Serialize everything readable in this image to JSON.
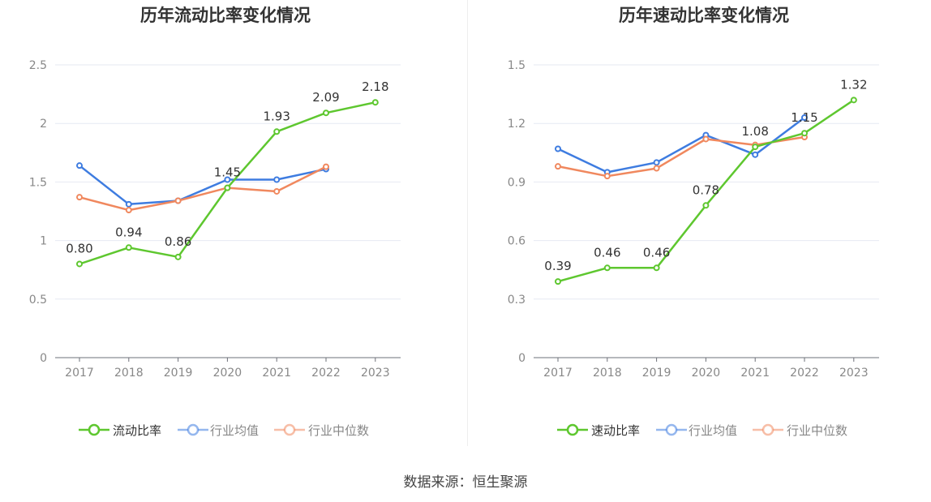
{
  "source_text": "数据来源：恒生聚源",
  "chart_data": [
    {
      "type": "line",
      "title": "历年流动比率变化情况",
      "categories": [
        "2017",
        "2018",
        "2019",
        "2020",
        "2021",
        "2022",
        "2023"
      ],
      "ylim": [
        0,
        2.5
      ],
      "yticks": [
        0,
        0.5,
        1,
        1.5,
        2,
        2.5
      ],
      "ytick_labels": [
        "0",
        "0.5",
        "1",
        "1.5",
        "2",
        "2.5"
      ],
      "grid": true,
      "legend": "bottom",
      "series": [
        {
          "name": "流动比率",
          "color": "#5ec72f",
          "values": [
            0.8,
            0.94,
            0.86,
            1.45,
            1.93,
            2.09,
            2.18
          ],
          "labels": [
            "0.80",
            "0.94",
            "0.86",
            "1.45",
            "1.93",
            "2.09",
            "2.18"
          ]
        },
        {
          "name": "行业均值",
          "color": "#3e7ce0",
          "values": [
            1.64,
            1.31,
            1.34,
            1.52,
            1.52,
            1.61,
            null
          ]
        },
        {
          "name": "行业中位数",
          "color": "#f0885e",
          "values": [
            1.37,
            1.26,
            1.34,
            1.45,
            1.42,
            1.63,
            null
          ]
        }
      ]
    },
    {
      "type": "line",
      "title": "历年速动比率变化情况",
      "categories": [
        "2017",
        "2018",
        "2019",
        "2020",
        "2021",
        "2022",
        "2023"
      ],
      "ylim": [
        0,
        1.5
      ],
      "yticks": [
        0,
        0.3,
        0.6,
        0.9,
        1.2,
        1.5
      ],
      "ytick_labels": [
        "0",
        "0.3",
        "0.6",
        "0.9",
        "1.2",
        "1.5"
      ],
      "grid": true,
      "legend": "bottom",
      "series": [
        {
          "name": "速动比率",
          "color": "#5ec72f",
          "values": [
            0.39,
            0.46,
            0.46,
            0.78,
            1.08,
            1.15,
            1.32
          ],
          "labels": [
            "0.39",
            "0.46",
            "0.46",
            "0.78",
            "1.08",
            "1.15",
            "1.32"
          ]
        },
        {
          "name": "行业均值",
          "color": "#3e7ce0",
          "values": [
            1.07,
            0.95,
            1.0,
            1.14,
            1.04,
            1.23,
            null
          ]
        },
        {
          "name": "行业中位数",
          "color": "#f0885e",
          "values": [
            0.98,
            0.93,
            0.97,
            1.12,
            1.09,
            1.13,
            null
          ]
        }
      ]
    }
  ]
}
